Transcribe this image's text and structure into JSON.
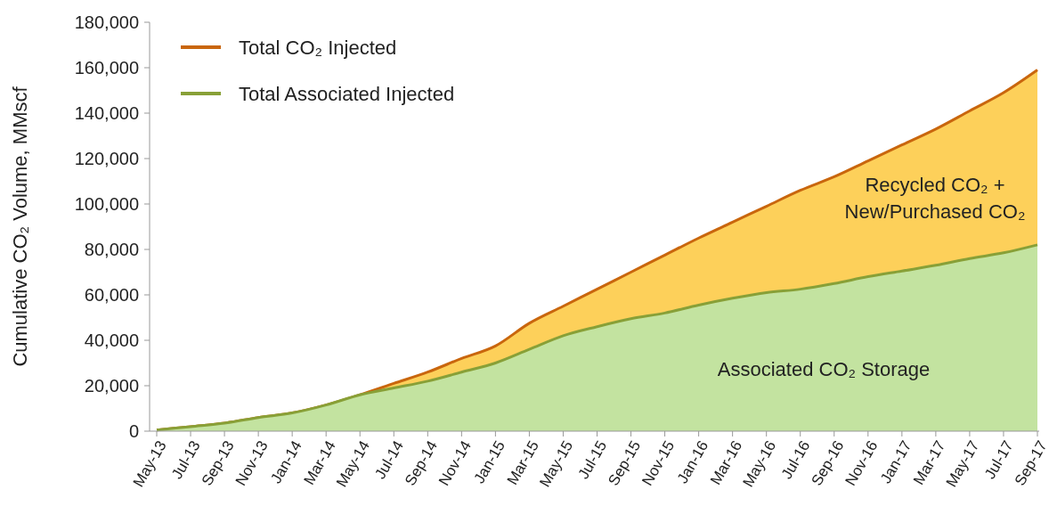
{
  "chart_data": {
    "type": "area",
    "ylabel": "Cumulative CO₂ Volume, MMscf",
    "categories": [
      "May-13",
      "Jul-13",
      "Sep-13",
      "Nov-13",
      "Jan-14",
      "Mar-14",
      "May-14",
      "Jul-14",
      "Sep-14",
      "Nov-14",
      "Jan-15",
      "Mar-15",
      "May-15",
      "Jul-15",
      "Sep-15",
      "Nov-15",
      "Jan-16",
      "Mar-16",
      "May-16",
      "Jul-16",
      "Sep-16",
      "Nov-16",
      "Jan-17",
      "Mar-17",
      "May-17",
      "Jul-17",
      "Sep-17"
    ],
    "series": [
      {
        "name": "Total CO₂ Injected",
        "color": "#fdd05a",
        "values": [
          500,
          2000,
          3500,
          6000,
          8000,
          11500,
          16000,
          21000,
          26000,
          32000,
          37500,
          47500,
          55000,
          62500,
          70000,
          77500,
          85000,
          92000,
          99000,
          106000,
          112000,
          119000,
          126000,
          133000,
          141000,
          149000,
          159000
        ]
      },
      {
        "name": "Total Associated Injected",
        "color": "#c3e3a0",
        "values": [
          500,
          2000,
          3500,
          6000,
          8000,
          11500,
          16000,
          19000,
          22000,
          26000,
          30000,
          36000,
          42000,
          46000,
          49500,
          52000,
          55500,
          58500,
          61000,
          62500,
          65000,
          68000,
          70500,
          73000,
          76000,
          78500,
          82000
        ]
      }
    ],
    "ylim": [
      0,
      180000
    ],
    "yticks": [
      {
        "value": 0,
        "label": "0"
      },
      {
        "value": 20000,
        "label": "20,000"
      },
      {
        "value": 40000,
        "label": "40,000"
      },
      {
        "value": 60000,
        "label": "60,000"
      },
      {
        "value": 80000,
        "label": "80,000"
      },
      {
        "value": 100000,
        "label": "100,000"
      },
      {
        "value": 120000,
        "label": "120,000"
      },
      {
        "value": 140000,
        "label": "140,000"
      },
      {
        "value": 160000,
        "label": "160,000"
      },
      {
        "value": 180000,
        "label": "180,000"
      }
    ],
    "annotations": [
      "Recycled CO₂ +\nNew/Purchased CO₂",
      "Associated CO₂ Storage"
    ],
    "legend": "top left",
    "grid": false
  }
}
